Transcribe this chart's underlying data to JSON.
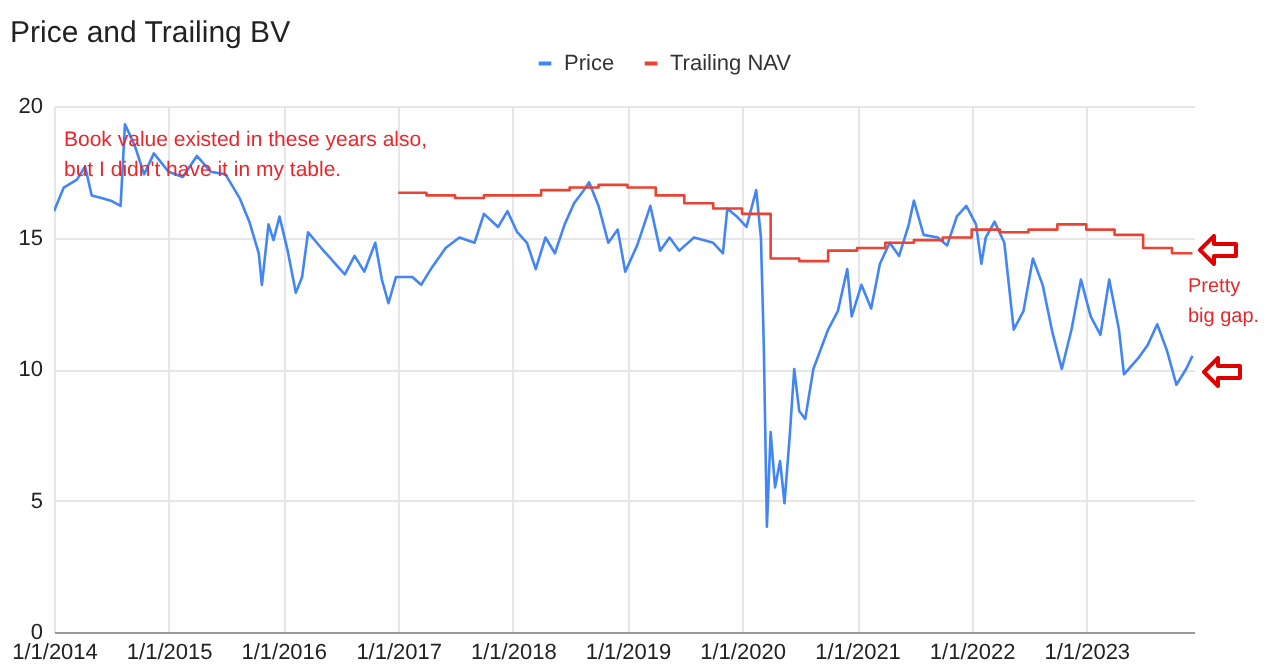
{
  "chart_data": {
    "type": "line",
    "title": "Price and Trailing BV",
    "xlim": [
      "2014-01-01",
      "2023-12-10"
    ],
    "xticks": [
      {
        "value": "2014-01-01",
        "label": "1/1/2014"
      },
      {
        "value": "2015-01-01",
        "label": "1/1/2015"
      },
      {
        "value": "2016-01-01",
        "label": "1/1/2016"
      },
      {
        "value": "2017-01-01",
        "label": "1/1/2017"
      },
      {
        "value": "2018-01-01",
        "label": "1/1/2018"
      },
      {
        "value": "2019-01-01",
        "label": "1/1/2019"
      },
      {
        "value": "2020-01-01",
        "label": "1/1/2020"
      },
      {
        "value": "2021-01-01",
        "label": "1/1/2021"
      },
      {
        "value": "2022-01-01",
        "label": "1/1/2022"
      },
      {
        "value": "2023-01-01",
        "label": "1/1/2023"
      }
    ],
    "ylim": [
      0,
      20
    ],
    "yticks": [
      0,
      5,
      10,
      15,
      20
    ],
    "grid": true,
    "legend": "top",
    "marker": "none",
    "line_style": "solid",
    "annotations": [
      "Book value existed in these years also, but I didn't have it in my table.",
      "Pretty big gap."
    ],
    "series": [
      {
        "name": "Price",
        "type": "line",
        "color": "#4285f4",
        "x": [
          "2014-01-01",
          "2014-02-01",
          "2014-03-15",
          "2014-04-10",
          "2014-05-01",
          "2014-06-01",
          "2014-07-01",
          "2014-08-01",
          "2014-08-15",
          "2014-09-15",
          "2014-10-15",
          "2014-11-15",
          "2015-01-01",
          "2015-02-15",
          "2015-04-01",
          "2015-05-15",
          "2015-07-01",
          "2015-08-15",
          "2015-09-15",
          "2015-10-15",
          "2015-10-25",
          "2015-11-15",
          "2015-12-01",
          "2015-12-20",
          "2016-01-15",
          "2016-02-10",
          "2016-03-01",
          "2016-03-20",
          "2016-05-01",
          "2016-06-15",
          "2016-07-15",
          "2016-08-15",
          "2016-09-15",
          "2016-10-20",
          "2016-11-10",
          "2016-12-01",
          "2016-12-25",
          "2017-02-15",
          "2017-03-15",
          "2017-04-15",
          "2017-06-01",
          "2017-07-15",
          "2017-09-01",
          "2017-10-01",
          "2017-11-15",
          "2017-12-15",
          "2018-01-15",
          "2018-02-15",
          "2018-03-15",
          "2018-04-15",
          "2018-05-15",
          "2018-06-15",
          "2018-07-15",
          "2018-08-15",
          "2018-09-01",
          "2018-10-01",
          "2018-11-01",
          "2018-12-01",
          "2018-12-25",
          "2019-02-01",
          "2019-03-15",
          "2019-04-15",
          "2019-05-15",
          "2019-06-15",
          "2019-08-01",
          "2019-10-01",
          "2019-11-01",
          "2019-11-15",
          "2019-12-15",
          "2020-01-15",
          "2020-02-15",
          "2020-03-01",
          "2020-03-10",
          "2020-03-20",
          "2020-04-01",
          "2020-04-15",
          "2020-05-01",
          "2020-05-15",
          "2020-06-01",
          "2020-06-15",
          "2020-07-01",
          "2020-07-20",
          "2020-08-15",
          "2020-10-01",
          "2020-11-01",
          "2020-12-01",
          "2020-12-15",
          "2021-01-15",
          "2021-02-15",
          "2021-03-15",
          "2021-04-15",
          "2021-05-15",
          "2021-06-15",
          "2021-07-01",
          "2021-08-01",
          "2021-09-15",
          "2021-10-15",
          "2021-11-15",
          "2021-12-15",
          "2022-01-15",
          "2022-02-01",
          "2022-02-15",
          "2022-03-15",
          "2022-04-15",
          "2022-05-15",
          "2022-06-15",
          "2022-07-15",
          "2022-08-15",
          "2022-09-15",
          "2022-10-15",
          "2022-11-15",
          "2022-12-15",
          "2023-01-15",
          "2023-02-15",
          "2023-03-15",
          "2023-04-15",
          "2023-05-01",
          "2023-06-15",
          "2023-07-15",
          "2023-08-15",
          "2023-09-15",
          "2023-10-15",
          "2023-11-15",
          "2023-12-05"
        ],
        "values": [
          16.0,
          16.9,
          17.2,
          17.7,
          16.6,
          16.5,
          16.4,
          16.2,
          19.3,
          18.5,
          17.4,
          18.2,
          17.5,
          17.3,
          18.1,
          17.5,
          17.4,
          16.5,
          15.6,
          14.4,
          13.2,
          15.5,
          14.9,
          15.8,
          14.5,
          12.9,
          13.5,
          15.2,
          14.6,
          14.0,
          13.6,
          14.3,
          13.7,
          14.8,
          13.4,
          12.5,
          13.5,
          13.5,
          13.2,
          13.8,
          14.6,
          15.0,
          14.8,
          15.9,
          15.4,
          16.0,
          15.2,
          14.8,
          13.8,
          15.0,
          14.4,
          15.5,
          16.3,
          16.8,
          17.1,
          16.2,
          14.8,
          15.3,
          13.7,
          14.7,
          16.2,
          14.5,
          15.0,
          14.5,
          15.0,
          14.8,
          14.4,
          16.1,
          15.8,
          15.4,
          16.8,
          15.0,
          11.0,
          4.0,
          7.6,
          5.5,
          6.5,
          4.9,
          7.5,
          10.0,
          8.4,
          8.1,
          10.0,
          11.5,
          12.2,
          13.8,
          12.0,
          13.2,
          12.3,
          14.0,
          14.8,
          14.3,
          15.5,
          16.4,
          15.1,
          15.0,
          14.7,
          15.8,
          16.2,
          15.5,
          14.0,
          15.0,
          15.6,
          14.8,
          11.5,
          12.2,
          14.2,
          13.2,
          11.4,
          10.0,
          11.5,
          13.4,
          12.0,
          11.3,
          13.4,
          11.5,
          9.8,
          10.4,
          10.9,
          11.7,
          10.7,
          9.4,
          10.0,
          10.5
        ]
      },
      {
        "name": "Trailing NAV",
        "type": "step",
        "color": "#ea4335",
        "x": [
          "2017-01-01",
          "2017-04-01",
          "2017-07-01",
          "2017-10-01",
          "2018-04-01",
          "2018-07-01",
          "2018-10-01",
          "2019-01-01",
          "2019-04-01",
          "2019-07-01",
          "2019-10-01",
          "2020-01-01",
          "2020-04-01",
          "2020-07-01",
          "2020-10-01",
          "2021-01-01",
          "2021-04-01",
          "2021-07-01",
          "2021-10-01",
          "2022-01-01",
          "2022-04-01",
          "2022-07-01",
          "2022-10-01",
          "2023-01-01",
          "2023-04-01",
          "2023-07-01",
          "2023-10-01",
          "2023-12-05"
        ],
        "values": [
          16.7,
          16.6,
          16.5,
          16.6,
          16.8,
          16.9,
          17.0,
          16.9,
          16.6,
          16.3,
          16.1,
          15.9,
          14.2,
          14.1,
          14.5,
          14.6,
          14.8,
          14.9,
          15.0,
          15.3,
          15.2,
          15.3,
          15.5,
          15.3,
          15.1,
          14.6,
          14.4,
          14.4
        ]
      }
    ]
  }
}
